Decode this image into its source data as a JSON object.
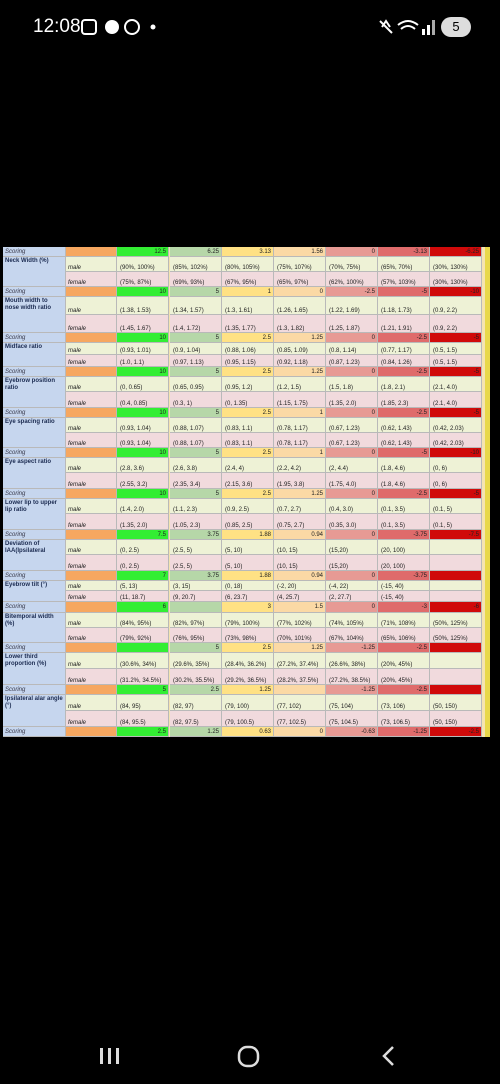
{
  "status_bar": {
    "time": "12:08",
    "battery": "5"
  },
  "table": {
    "rows": [
      {
        "label": "Scoring",
        "scores": [
          12.5,
          6.25,
          3.13,
          1.56,
          0,
          -3.13,
          -6.25
        ]
      },
      {
        "label": "Neck Width (%)",
        "male_label": "male",
        "female_label": "female",
        "male": [
          "(90%, 100%)",
          "(85%, 102%)",
          "(80%, 105%)",
          "(75%, 107%)",
          "(70%, 75%)",
          "(65%, 70%)",
          "(30%, 130%)"
        ],
        "female": [
          "(75%, 87%)",
          "(69%, 93%)",
          "(67%, 95%)",
          "(65%, 97%)",
          "(62%, 100%)",
          "(57%, 103%)",
          "(30%, 130%)"
        ]
      },
      {
        "label": "Scoring",
        "scores": [
          10,
          5,
          1,
          0,
          -2.5,
          -5,
          -10
        ]
      },
      {
        "label": "Mouth width to nose width ratio",
        "male_label": "male",
        "female_label": "female",
        "male": [
          "(1.38, 1.53)",
          "(1.34, 1.57)",
          "(1.3, 1.61)",
          "(1.26, 1.65)",
          "(1.22, 1.69)",
          "(1.18, 1.73)",
          "(0.9, 2.2)"
        ],
        "female": [
          "(1.45, 1.67)",
          "(1.4, 1.72)",
          "(1.35, 1.77)",
          "(1.3, 1.82)",
          "(1.25, 1.87)",
          "(1.21, 1.91)",
          "(0.9, 2.2)"
        ]
      },
      {
        "label": "Scoring",
        "scores": [
          10,
          5,
          2.5,
          1.25,
          0,
          -2.5,
          -5
        ]
      },
      {
        "label": "Midface ratio",
        "male_label": "male",
        "female_label": "female",
        "male": [
          "(0.93, 1.01)",
          "(0.9, 1.04)",
          "(0.88, 1.06)",
          "(0.85, 1.09)",
          "(0.8, 1.14)",
          "(0.77, 1.17)",
          "(0.5, 1.5)"
        ],
        "female": [
          "(1.0, 1.1)",
          "(0.97, 1.13)",
          "(0.95, 1.15)",
          "(0.92, 1.18)",
          "(0.87, 1.23)",
          "(0.84, 1.26)",
          "(0.5, 1.5)"
        ]
      },
      {
        "label": "Scoring",
        "scores": [
          10,
          5,
          2.5,
          1.25,
          0,
          -2.5,
          -5
        ]
      },
      {
        "label": "Eyebrow position ratio",
        "male_label": "male",
        "female_label": "female",
        "male": [
          "(0, 0.65)",
          "(0.65, 0.95)",
          "(0.95, 1.2)",
          "(1.2, 1.5)",
          "(1.5, 1.8)",
          "(1.8, 2.1)",
          "(2.1, 4.0)"
        ],
        "female": [
          "(0.4, 0.85)",
          "(0.3, 1)",
          "(0, 1.35)",
          "(1.15, 1.75)",
          "(1.35, 2.0)",
          "(1.85, 2.3)",
          "(2.1, 4.0)"
        ]
      },
      {
        "label": "Scoring",
        "scores": [
          10,
          5,
          2.5,
          1,
          0,
          -2.5,
          -5
        ]
      },
      {
        "label": "Eye spacing ratio",
        "male_label": "male",
        "female_label": "female",
        "male": [
          "(0.93, 1.04)",
          "(0.88, 1.07)",
          "(0.83, 1.1)",
          "(0.78, 1.17)",
          "(0.67, 1.23)",
          "(0.62, 1.43)",
          "(0.42, 2.03)"
        ],
        "female": [
          "(0.93, 1.04)",
          "(0.88, 1.07)",
          "(0.83, 1.1)",
          "(0.78, 1.17)",
          "(0.67, 1.23)",
          "(0.62, 1.43)",
          "(0.42, 2.03)"
        ]
      },
      {
        "label": "Scoring",
        "scores": [
          10,
          5,
          2.5,
          1,
          0,
          -5,
          -10
        ]
      },
      {
        "label": "Eye aspect ratio",
        "male_label": "male",
        "female_label": "female",
        "male": [
          "(2.8, 3.6)",
          "(2.6, 3.8)",
          "(2.4, 4)",
          "(2.2, 4.2)",
          "(2, 4.4)",
          "(1.8, 4.6)",
          "(0, 6)"
        ],
        "female": [
          "(2.55, 3.2)",
          "(2.35, 3.4)",
          "(2.15, 3.6)",
          "(1.95, 3.8)",
          "(1.75, 4.0)",
          "(1.8, 4.6)",
          "(0, 6)"
        ]
      },
      {
        "label": "Scoring",
        "scores": [
          10,
          5,
          2.5,
          1.25,
          0,
          -2.5,
          -5
        ]
      },
      {
        "label": "Lower lip to upper lip ratio",
        "male_label": "male",
        "female_label": "female",
        "male": [
          "(1.4, 2.0)",
          "(1.1, 2.3)",
          "(0.9, 2.5)",
          "(0.7, 2.7)",
          "(0.4, 3.0)",
          "(0.1, 3.5)",
          "(0.1, 5)"
        ],
        "female": [
          "(1.35, 2.0)",
          "(1.05, 2.3)",
          "(0.85, 2.5)",
          "(0.75, 2.7)",
          "(0.35, 3.0)",
          "(0.1, 3.5)",
          "(0.1, 5)"
        ]
      },
      {
        "label": "Scoring",
        "scores": [
          7.5,
          3.75,
          1.88,
          0.94,
          0,
          -3.75,
          -7.5
        ]
      },
      {
        "label": "Deviation of IAA(Ipsilateral",
        "male_label": "male",
        "female_label": "female",
        "male": [
          "(0, 2.5)",
          "(2.5, 5)",
          "(5, 10)",
          "(10, 15)",
          "(15,20)",
          "(20, 100)",
          null
        ],
        "female": [
          "(0, 2.5)",
          "(2.5, 5)",
          "(5, 10)",
          "(10, 15)",
          "(15,20)",
          "(20, 100)",
          null
        ]
      },
      {
        "label": "Scoring",
        "scores": [
          7,
          3.75,
          1.88,
          0.94,
          0,
          -3.75,
          null
        ]
      },
      {
        "label": "Eyebrow tilt (°)",
        "male_label": "male",
        "female_label": "female",
        "male": [
          "(5, 13)",
          "(3, 15)",
          "(0, 18)",
          "(-2, 20)",
          "(-4, 22)",
          "(-15, 40)",
          null
        ],
        "female": [
          "(11, 18.7)",
          "(9, 20.7)",
          "(6, 23.7)",
          "(4, 25.7)",
          "(2, 27.7)",
          "(-15, 40)",
          null
        ]
      },
      {
        "label": "Scoring",
        "scores": [
          6,
          null,
          3,
          1.5,
          0,
          -3,
          -6
        ]
      },
      {
        "label": "Bitemporal width (%)",
        "male_label": "male",
        "female_label": "female",
        "male": [
          "(84%, 95%)",
          "(82%, 97%)",
          "(79%, 100%)",
          "(77%, 102%)",
          "(74%, 105%)",
          "(71%, 108%)",
          "(50%, 125%)"
        ],
        "female": [
          "(79%, 92%)",
          "(76%, 95%)",
          "(73%, 98%)",
          "(70%, 101%)",
          "(67%, 104%)",
          "(65%, 106%)",
          "(50%, 125%)"
        ]
      },
      {
        "label": "Scoring",
        "scores": [
          null,
          5,
          2.5,
          1.25,
          -1.25,
          -2.5,
          null
        ]
      },
      {
        "label": "Lower third proportion (%)",
        "male_label": "male",
        "female_label": "female",
        "male": [
          "(30.6%, 34%)",
          "(29.6%, 35%)",
          "(28.4%, 36.2%)",
          "(27.2%, 37.4%)",
          "(26.6%, 38%)",
          "(20%, 45%)",
          null
        ],
        "female": [
          "(31.2%, 34.5%)",
          "(30.2%, 35.5%)",
          "(29.2%, 36.5%)",
          "(28.2%, 37.5%)",
          "(27.2%, 38.5%)",
          "(20%, 45%)",
          null
        ]
      },
      {
        "label": "Scoring",
        "scores": [
          5,
          2.5,
          1.25,
          null,
          -1.25,
          -2.5,
          null
        ]
      },
      {
        "label": "Ipsilateral alar angle (°)",
        "male_label": "male",
        "female_label": "female",
        "male": [
          "(84, 95)",
          "(82, 97)",
          "(79, 100)",
          "(77, 102)",
          "(75, 104)",
          "(73, 106)",
          "(50, 150)"
        ],
        "female": [
          "(84, 95.5)",
          "(82, 97.5)",
          "(79, 100.5)",
          "(77, 102.5)",
          "(75, 104.5)",
          "(73, 106.5)",
          "(50, 150)"
        ]
      },
      {
        "label": "Scoring",
        "scores": [
          2.5,
          1.25,
          0.63,
          0,
          -0.63,
          -1.25,
          -2.5
        ]
      }
    ]
  }
}
